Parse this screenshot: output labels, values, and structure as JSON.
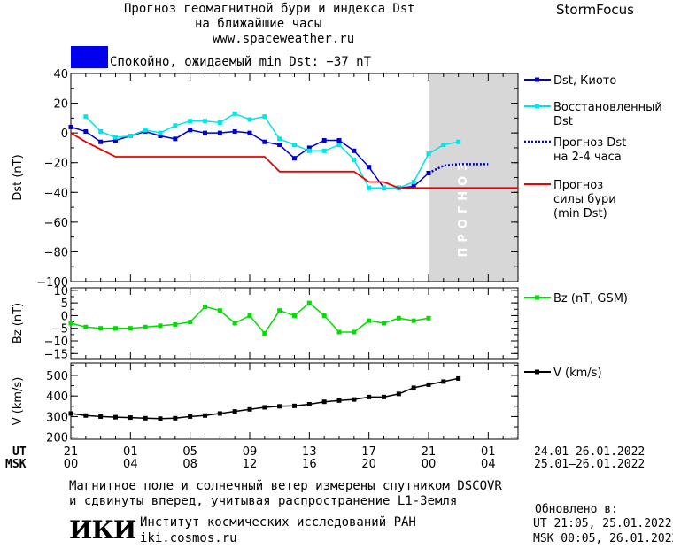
{
  "header": {
    "title_line1": "Прогноз геомагнитной бури и индекса Dst",
    "title_line2": "на ближайшие часы",
    "site": "www.spaceweather.ru",
    "brand": "StormFocus",
    "status_text": "Спокойно, ожидаемый min Dst: −37 nT",
    "status_color": "#0000ee"
  },
  "footer": {
    "note_line1": "Магнитное поле и солнечный ветер измерены спутником DSCOVR",
    "note_line2": "и сдвинуты вперед, учитывая распространение L1-Земля",
    "logo_text": "ИКИ",
    "institute": "Институт космических исследований РАН",
    "institute_site": "iki.cosmos.ru",
    "updated_label": "Обновлено в:",
    "updated_ut": "UT  21:05, 25.01.2022",
    "updated_msk": "MSK 00:05, 26.01.2022"
  },
  "time_axis": {
    "ut_label": "UT",
    "msk_label": "MSK",
    "ut_ticks": [
      "21",
      "01",
      "05",
      "09",
      "13",
      "17",
      "21",
      "01"
    ],
    "msk_ticks": [
      "00",
      "04",
      "08",
      "12",
      "16",
      "20",
      "00",
      "04"
    ],
    "ut_range": "24.01–26.01.2022",
    "msk_range": "25.01–26.01.2022"
  },
  "chart_data": [
    {
      "type": "line",
      "ylabel": "Dst (nT)",
      "ylim": [
        -100,
        40
      ],
      "yticks": [
        "40",
        "20",
        "0",
        "−20",
        "−40",
        "−60",
        "−80",
        "−100"
      ],
      "forecast_label": "ПРОГНОЗ",
      "forecast_start_hour": 24,
      "x_hours": [
        0,
        1,
        2,
        3,
        4,
        5,
        6,
        7,
        8,
        9,
        10,
        11,
        12,
        13,
        14,
        15,
        16,
        17,
        18,
        19,
        20,
        21,
        22,
        23,
        24,
        25,
        26
      ],
      "series": [
        {
          "name": "Dst, Киото",
          "color": "#0000cc",
          "marker": "square",
          "values": [
            4,
            1,
            -6,
            -5,
            -2,
            1,
            -2,
            -4,
            2,
            0,
            0,
            1,
            0,
            -6,
            -8,
            -17,
            -10,
            -5,
            -5,
            -12,
            -23,
            -37,
            -37,
            -36,
            -27,
            null,
            null
          ]
        },
        {
          "name": "Восстановленный Dst",
          "color": "#00e5e5",
          "marker": "square",
          "values": [
            null,
            11,
            1,
            -3,
            -2,
            2,
            0,
            5,
            8,
            8,
            7,
            13,
            9,
            11,
            -4,
            -8,
            -12,
            -12,
            -8,
            -18,
            -37,
            -37,
            -37,
            -33,
            -14,
            -8,
            -6
          ]
        },
        {
          "name": "Прогноз Dst на 2-4 часа",
          "color": "#0000cc",
          "marker": "dotted",
          "x": [
            24,
            25,
            26,
            27,
            28
          ],
          "values": [
            -27,
            -22,
            -21,
            -21,
            -21
          ]
        },
        {
          "name": "Прогноз силы бури (min Dst)",
          "color": "#ee0000",
          "marker": "none",
          "x": [
            0,
            1,
            3,
            13,
            14,
            19,
            20,
            21,
            22,
            30
          ],
          "values": [
            0,
            -6,
            -16,
            -16,
            -26,
            -26,
            -33,
            -33,
            -37,
            -37
          ]
        }
      ]
    },
    {
      "type": "line",
      "ylabel": "Bz (nT)",
      "ylim": [
        -17,
        11
      ],
      "yticks": [
        "10",
        "5",
        "0",
        "−5",
        "−10",
        "−15"
      ],
      "x_hours": [
        0,
        1,
        2,
        3,
        4,
        5,
        6,
        7,
        8,
        9,
        10,
        11,
        12,
        13,
        14,
        15,
        16,
        17,
        18,
        19,
        20,
        21,
        22,
        23,
        24,
        25,
        26
      ],
      "series": [
        {
          "name": "Bz (nT, GSM)",
          "color": "#00dd00",
          "marker": "square",
          "values": [
            -3,
            -4.5,
            -5,
            -5,
            -5,
            -4.5,
            -4,
            -3.5,
            -2.5,
            3.5,
            2,
            -3,
            0,
            -7,
            2,
            0,
            5,
            0,
            -6.5,
            -6.5,
            -2,
            -3,
            -1,
            -2,
            -1,
            null,
            null
          ]
        }
      ]
    },
    {
      "type": "line",
      "ylabel": "V (km/s)",
      "ylim": [
        190,
        560
      ],
      "yticks": [
        "500",
        "400",
        "300",
        "200"
      ],
      "x_hours": [
        0,
        1,
        2,
        3,
        4,
        5,
        6,
        7,
        8,
        9,
        10,
        11,
        12,
        13,
        14,
        15,
        16,
        17,
        18,
        19,
        20,
        21,
        22,
        23,
        24,
        25,
        26
      ],
      "series": [
        {
          "name": "V (km/s)",
          "color": "#000000",
          "marker": "square",
          "values": [
            315,
            305,
            300,
            297,
            295,
            292,
            290,
            292,
            300,
            305,
            315,
            325,
            335,
            345,
            350,
            352,
            360,
            372,
            378,
            383,
            395,
            395,
            410,
            440,
            455,
            470,
            485
          ]
        }
      ]
    }
  ]
}
